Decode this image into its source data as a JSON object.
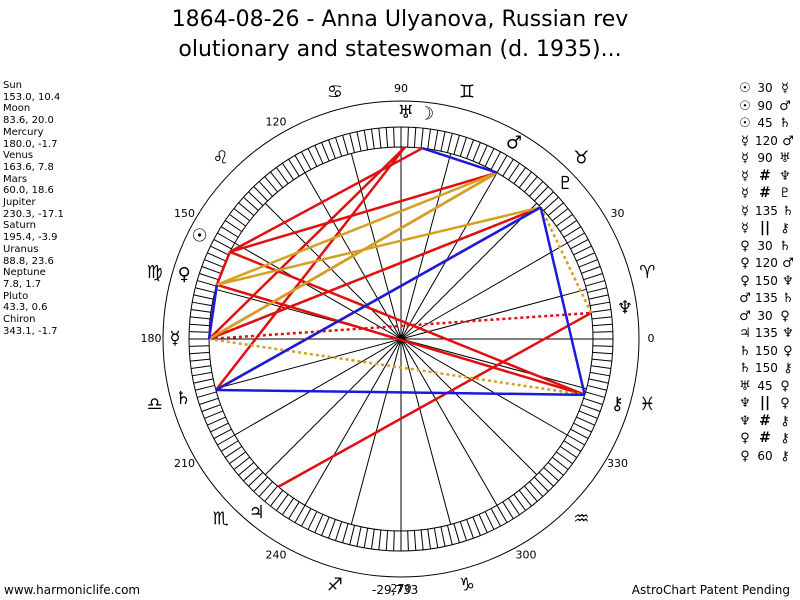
{
  "title": {
    "line1": "1864-08-26 - Anna Ulyanova, Russian rev",
    "line2": "olutionary and stateswoman (d. 1935)..."
  },
  "planets": [
    {
      "name": "Sun",
      "coords": "153.0, 10.4",
      "longitude": 153.0,
      "glyph": "☉",
      "color": "#000000"
    },
    {
      "name": "Moon",
      "coords": "83.6, 20.0",
      "longitude": 83.6,
      "glyph": "☽",
      "color": "#000000"
    },
    {
      "name": "Mercury",
      "coords": "180.0, -1.7",
      "longitude": 180.0,
      "glyph": "☿",
      "color": "#000000"
    },
    {
      "name": "Venus",
      "coords": "163.6, 7.8",
      "longitude": 163.6,
      "glyph": "♀",
      "color": "#000000"
    },
    {
      "name": "Mars",
      "coords": "60.0, 18.6",
      "longitude": 60.0,
      "glyph": "♂",
      "color": "#000000"
    },
    {
      "name": "Jupiter",
      "coords": "230.3, -17.1",
      "longitude": 230.3,
      "glyph": "♃",
      "color": "#000000"
    },
    {
      "name": "Saturn",
      "coords": "195.4, -3.9",
      "longitude": 195.4,
      "glyph": "♄",
      "color": "#000000"
    },
    {
      "name": "Uranus",
      "coords": "88.8, 23.6",
      "longitude": 88.8,
      "glyph": "♅",
      "color": "#000000"
    },
    {
      "name": "Neptune",
      "coords": "7.8, 1.7",
      "longitude": 7.8,
      "glyph": "♆",
      "color": "#000000"
    },
    {
      "name": "Pluto",
      "coords": "43.3, 0.6",
      "longitude": 43.3,
      "glyph": "♇",
      "color": "#000000"
    },
    {
      "name": "Chiron",
      "coords": "343.1, -1.7",
      "longitude": 343.1,
      "glyph": "⚷",
      "color": "#000000"
    }
  ],
  "aspect_list": [
    {
      "p1": "☉",
      "aspect": "30",
      "p2": "☿"
    },
    {
      "p1": "☉",
      "aspect": "90",
      "p2": "♂"
    },
    {
      "p1": "☉",
      "aspect": "45",
      "p2": "♄"
    },
    {
      "p1": "☿",
      "aspect": "120",
      "p2": "♂"
    },
    {
      "p1": "☿",
      "aspect": "90",
      "p2": "♅"
    },
    {
      "p1": "☿",
      "aspect": "#",
      "p2": "♆"
    },
    {
      "p1": "☿",
      "aspect": "#",
      "p2": "♇"
    },
    {
      "p1": "☿",
      "aspect": "135",
      "p2": "♄"
    },
    {
      "p1": "☿",
      "aspect": "||",
      "p2": "⚷"
    },
    {
      "p1": "♀",
      "aspect": "30",
      "p2": "♄"
    },
    {
      "p1": "♀",
      "aspect": "120",
      "p2": "♂"
    },
    {
      "p1": "♀",
      "aspect": "150",
      "p2": "♆"
    },
    {
      "p1": "♂",
      "aspect": "135",
      "p2": "♄"
    },
    {
      "p1": "♂",
      "aspect": "30",
      "p2": "♀"
    },
    {
      "p1": "♃",
      "aspect": "135",
      "p2": "♆"
    },
    {
      "p1": "♄",
      "aspect": "150",
      "p2": "♀"
    },
    {
      "p1": "♄",
      "aspect": "150",
      "p2": "⚷"
    },
    {
      "p1": "♅",
      "aspect": "45",
      "p2": "♀"
    },
    {
      "p1": "♆",
      "aspect": "||",
      "p2": "♀"
    },
    {
      "p1": "♆",
      "aspect": "#",
      "p2": "⚷"
    },
    {
      "p1": "♀",
      "aspect": "#",
      "p2": "⚷"
    },
    {
      "p1": "♀",
      "aspect": "60",
      "p2": "⚷"
    }
  ],
  "wheel": {
    "degree_labels": [
      {
        "text": "0",
        "angle": 0
      },
      {
        "text": "30",
        "angle": 30
      },
      {
        "text": "90",
        "angle": 90
      },
      {
        "text": "120",
        "angle": 120
      },
      {
        "text": "150",
        "angle": 150
      },
      {
        "text": "180",
        "angle": 180
      },
      {
        "text": "210",
        "angle": 210
      },
      {
        "text": "240",
        "angle": 240
      },
      {
        "text": "270",
        "angle": 270
      },
      {
        "text": "300",
        "angle": 300
      },
      {
        "text": "330",
        "angle": 330
      }
    ],
    "signs": [
      {
        "glyph": "♈",
        "angle": 15
      },
      {
        "glyph": "♉",
        "angle": 45
      },
      {
        "glyph": "♊",
        "angle": 75
      },
      {
        "glyph": "♋",
        "angle": 105
      },
      {
        "glyph": "♌",
        "angle": 135
      },
      {
        "glyph": "♍",
        "angle": 165
      },
      {
        "glyph": "♎",
        "angle": 195
      },
      {
        "glyph": "♏",
        "angle": 225
      },
      {
        "glyph": "♐",
        "angle": 255
      },
      {
        "glyph": "♑",
        "angle": 285
      },
      {
        "glyph": "♒",
        "angle": 315
      },
      {
        "glyph": "♓",
        "angle": 345
      }
    ],
    "aspect_lines": [
      {
        "from": 153.0,
        "to": 83.6,
        "color": "#e01010",
        "style": "solid"
      },
      {
        "from": 153.0,
        "to": 60.0,
        "color": "#e01010",
        "style": "solid"
      },
      {
        "from": 153.0,
        "to": 343.1,
        "color": "#e01010",
        "style": "solid"
      },
      {
        "from": 180.0,
        "to": 60.0,
        "color": "#e01010",
        "style": "solid"
      },
      {
        "from": 180.0,
        "to": 43.3,
        "color": "#e01010",
        "style": "solid"
      },
      {
        "from": 180.0,
        "to": 88.8,
        "color": "#e01010",
        "style": "solid"
      },
      {
        "from": 180.0,
        "to": 7.8,
        "color": "#e01010",
        "style": "dotted"
      },
      {
        "from": 163.6,
        "to": 343.1,
        "color": "#e01010",
        "style": "solid"
      },
      {
        "from": 163.6,
        "to": 153.0,
        "color": "#e01010",
        "style": "solid"
      },
      {
        "from": 163.6,
        "to": 180.0,
        "color": "#e01010",
        "style": "solid"
      },
      {
        "from": 230.3,
        "to": 7.8,
        "color": "#e01010",
        "style": "solid"
      },
      {
        "from": 88.8,
        "to": 195.4,
        "color": "#e01010",
        "style": "solid"
      },
      {
        "from": 43.3,
        "to": 195.4,
        "color": "#e01010",
        "style": "solid"
      },
      {
        "from": 43.3,
        "to": 180.0,
        "color": "#e01010",
        "style": "dotted"
      },
      {
        "from": 60.0,
        "to": 180.0,
        "color": "#d4a020",
        "style": "solid"
      },
      {
        "from": 43.3,
        "to": 163.6,
        "color": "#d4a020",
        "style": "solid"
      },
      {
        "from": 43.3,
        "to": 195.4,
        "color": "#d4a020",
        "style": "solid"
      },
      {
        "from": 60.0,
        "to": 163.6,
        "color": "#d4a020",
        "style": "solid"
      },
      {
        "from": 43.3,
        "to": 7.8,
        "color": "#d4a020",
        "style": "dotted"
      },
      {
        "from": 180.0,
        "to": 343.1,
        "color": "#d4a020",
        "style": "dotted"
      },
      {
        "from": 83.6,
        "to": 60.0,
        "color": "#1a1adf",
        "style": "solid"
      },
      {
        "from": 43.3,
        "to": 343.1,
        "color": "#1a1adf",
        "style": "solid"
      },
      {
        "from": 195.4,
        "to": 343.1,
        "color": "#1a1adf",
        "style": "solid"
      },
      {
        "from": 195.4,
        "to": 43.3,
        "color": "#1a1adf",
        "style": "solid"
      },
      {
        "from": 163.6,
        "to": 180.0,
        "color": "#1a1adf",
        "style": "solid"
      }
    ]
  },
  "footer": {
    "left": "www.harmoniclife.com",
    "center": "-29,733",
    "right": "AstroChart Patent Pending"
  }
}
